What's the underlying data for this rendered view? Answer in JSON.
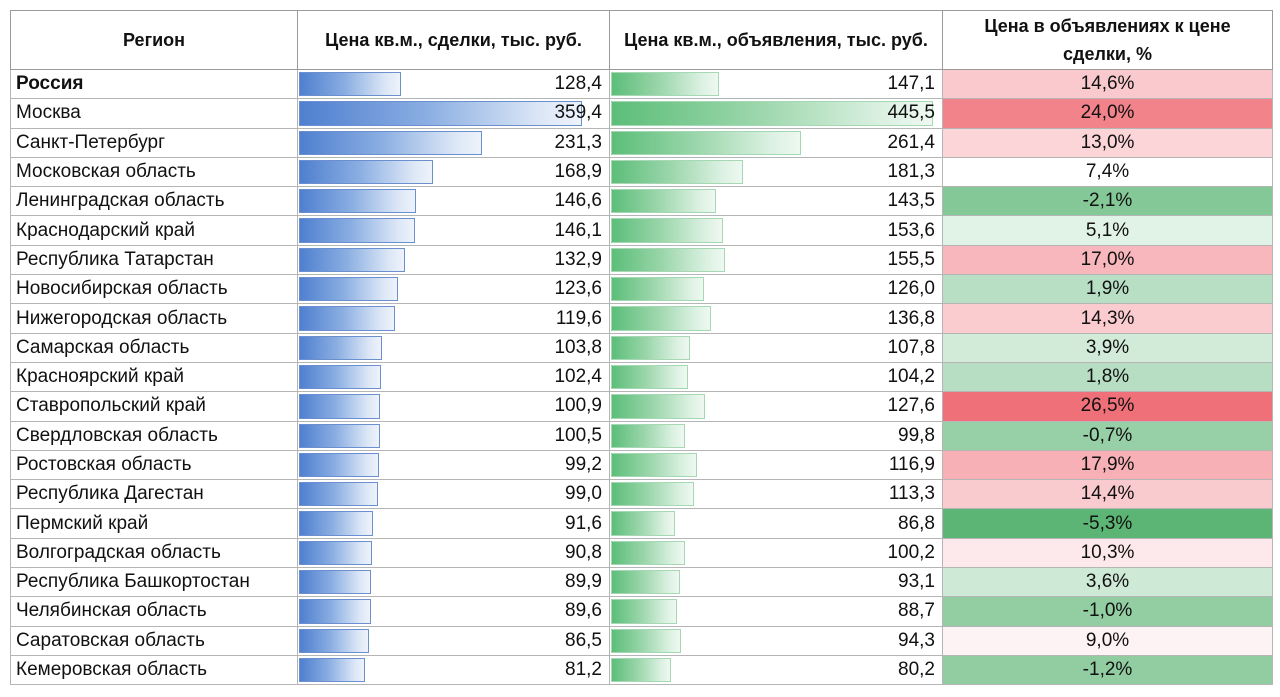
{
  "header": {
    "col_region": "Регион",
    "col_deals": "Цена кв.м., сделки, тыс. руб.",
    "col_listings": "Цена кв.м., объявления, тыс. руб.",
    "col_ratio": "Цена в объявлениях к цене сделки, %"
  },
  "colors": {
    "deal_bar": "#4f7fcf",
    "listing_bar": "#5cbe79",
    "positive_high": "#f0707a",
    "neutral": "#ffffff",
    "negative_high": "#5cb574"
  },
  "rows": [
    {
      "region": "Россия",
      "deals": "128,4",
      "deals_value": 128.4,
      "listings": "147,1",
      "listings_value": 147.1,
      "ratio": "14,6%",
      "ratio_value": 14.6,
      "bold": true
    },
    {
      "region": "Москва",
      "deals": "359,4",
      "deals_value": 359.4,
      "listings": "445,5",
      "listings_value": 445.5,
      "ratio": "24,0%",
      "ratio_value": 24.0
    },
    {
      "region": "Санкт-Петербург",
      "deals": "231,3",
      "deals_value": 231.3,
      "listings": "261,4",
      "listings_value": 261.4,
      "ratio": "13,0%",
      "ratio_value": 13.0
    },
    {
      "region": "Московская область",
      "deals": "168,9",
      "deals_value": 168.9,
      "listings": "181,3",
      "listings_value": 181.3,
      "ratio": "7,4%",
      "ratio_value": 7.4
    },
    {
      "region": "Ленинградская область",
      "deals": "146,6",
      "deals_value": 146.6,
      "listings": "143,5",
      "listings_value": 143.5,
      "ratio": "-2,1%",
      "ratio_value": -2.1
    },
    {
      "region": "Краснодарский край",
      "deals": "146,1",
      "deals_value": 146.1,
      "listings": "153,6",
      "listings_value": 153.6,
      "ratio": "5,1%",
      "ratio_value": 5.1
    },
    {
      "region": "Республика Татарстан",
      "deals": "132,9",
      "deals_value": 132.9,
      "listings": "155,5",
      "listings_value": 155.5,
      "ratio": "17,0%",
      "ratio_value": 17.0
    },
    {
      "region": "Новосибирская область",
      "deals": "123,6",
      "deals_value": 123.6,
      "listings": "126,0",
      "listings_value": 126.0,
      "ratio": "1,9%",
      "ratio_value": 1.9
    },
    {
      "region": "Нижегородская область",
      "deals": "119,6",
      "deals_value": 119.6,
      "listings": "136,8",
      "listings_value": 136.8,
      "ratio": "14,3%",
      "ratio_value": 14.3
    },
    {
      "region": "Самарская область",
      "deals": "103,8",
      "deals_value": 103.8,
      "listings": "107,8",
      "listings_value": 107.8,
      "ratio": "3,9%",
      "ratio_value": 3.9
    },
    {
      "region": "Красноярский край",
      "deals": "102,4",
      "deals_value": 102.4,
      "listings": "104,2",
      "listings_value": 104.2,
      "ratio": "1,8%",
      "ratio_value": 1.8
    },
    {
      "region": "Ставропольский край",
      "deals": "100,9",
      "deals_value": 100.9,
      "listings": "127,6",
      "listings_value": 127.6,
      "ratio": "26,5%",
      "ratio_value": 26.5
    },
    {
      "region": "Свердловская область",
      "deals": "100,5",
      "deals_value": 100.5,
      "listings": "99,8",
      "listings_value": 99.8,
      "ratio": "-0,7%",
      "ratio_value": -0.7
    },
    {
      "region": "Ростовская область",
      "deals": "99,2",
      "deals_value": 99.2,
      "listings": "116,9",
      "listings_value": 116.9,
      "ratio": "17,9%",
      "ratio_value": 17.9
    },
    {
      "region": "Республика Дагестан",
      "deals": "99,0",
      "deals_value": 99.0,
      "listings": "113,3",
      "listings_value": 113.3,
      "ratio": "14,4%",
      "ratio_value": 14.4
    },
    {
      "region": "Пермский край",
      "deals": "91,6",
      "deals_value": 91.6,
      "listings": "86,8",
      "listings_value": 86.8,
      "ratio": "-5,3%",
      "ratio_value": -5.3
    },
    {
      "region": "Волгоградская область",
      "deals": "90,8",
      "deals_value": 90.8,
      "listings": "100,2",
      "listings_value": 100.2,
      "ratio": "10,3%",
      "ratio_value": 10.3
    },
    {
      "region": "Республика Башкортостан",
      "deals": "89,9",
      "deals_value": 89.9,
      "listings": "93,1",
      "listings_value": 93.1,
      "ratio": "3,6%",
      "ratio_value": 3.6
    },
    {
      "region": "Челябинская область",
      "deals": "89,6",
      "deals_value": 89.6,
      "listings": "88,7",
      "listings_value": 88.7,
      "ratio": "-1,0%",
      "ratio_value": -1.0
    },
    {
      "region": "Саратовская область",
      "deals": "86,5",
      "deals_value": 86.5,
      "listings": "94,3",
      "listings_value": 94.3,
      "ratio": "9,0%",
      "ratio_value": 9.0
    },
    {
      "region": "Кемеровская область",
      "deals": "81,2",
      "deals_value": 81.2,
      "listings": "80,2",
      "listings_value": 80.2,
      "ratio": "-1,2%",
      "ratio_value": -1.2
    }
  ]
}
